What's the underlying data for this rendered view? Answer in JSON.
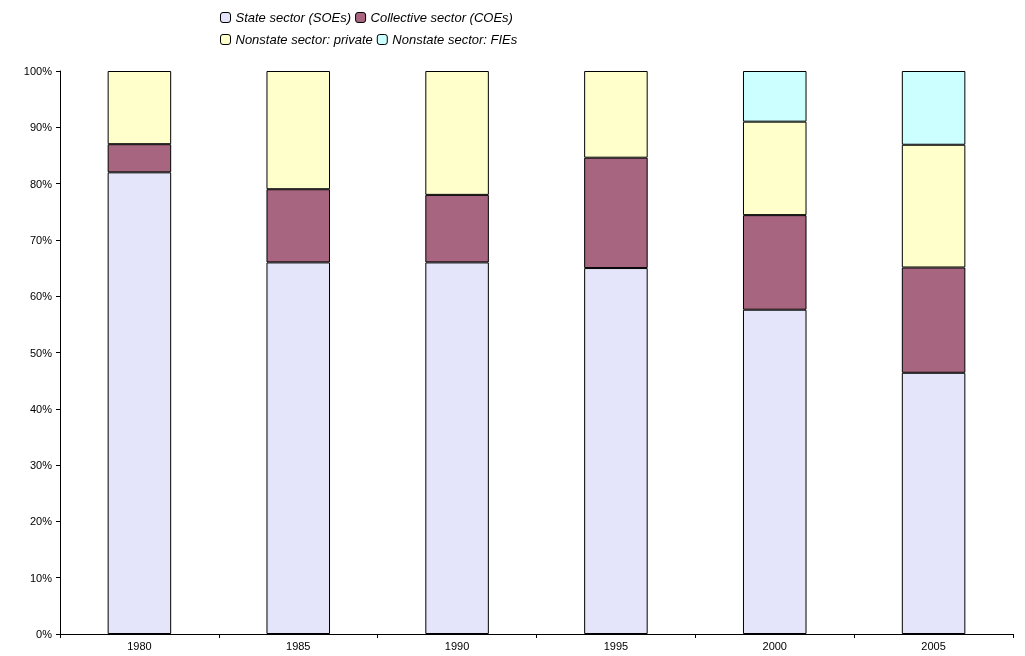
{
  "chart_data": {
    "type": "bar",
    "stacked": true,
    "legend": "top",
    "grid": false,
    "categories": [
      "1980",
      "1985",
      "1990",
      "1995",
      "2000",
      "2005"
    ],
    "ylim": [
      0,
      100
    ],
    "yticks": [
      {
        "value": 0,
        "label": "0%"
      },
      {
        "value": 10,
        "label": "10%"
      },
      {
        "value": 20,
        "label": "20%"
      },
      {
        "value": 30,
        "label": "30%"
      },
      {
        "value": 40,
        "label": "40%"
      },
      {
        "value": 50,
        "label": "50%"
      },
      {
        "value": 60,
        "label": "60%"
      },
      {
        "value": 70,
        "label": "70%"
      },
      {
        "value": 80,
        "label": "80%"
      },
      {
        "value": 90,
        "label": "90%"
      },
      {
        "value": 100,
        "label": "100%"
      }
    ],
    "series": [
      {
        "name": "State sector (SOEs)",
        "color": "#e4e4fb",
        "values": [
          82,
          66,
          66,
          65,
          57.6,
          46.4
        ]
      },
      {
        "name": "Collective sector (COEs)",
        "color": "#a8657f",
        "values": [
          5,
          13,
          12,
          19.6,
          16.8,
          18.7
        ]
      },
      {
        "name": "Nonstate sector: private",
        "color": "#ffffcc",
        "values": [
          13,
          21,
          22,
          15.4,
          16.6,
          21.8
        ]
      },
      {
        "name": "Nonstate sector: FIEs",
        "color": "#ccffff",
        "values": [
          null,
          null,
          null,
          null,
          9,
          13.1
        ]
      }
    ]
  }
}
